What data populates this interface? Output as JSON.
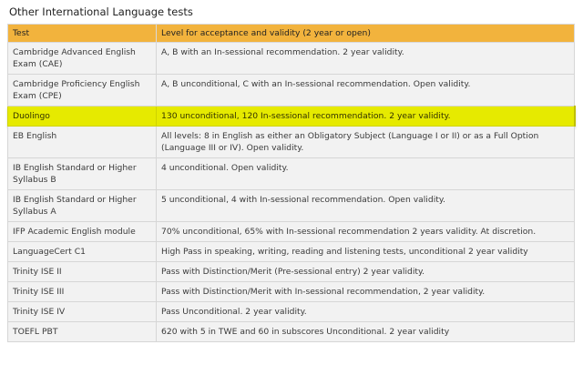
{
  "caption": "Other International Language tests",
  "columns": {
    "test": "Test",
    "level": "Level for acceptance and validity (2 year or open)"
  },
  "rows": [
    {
      "test": "Cambridge Advanced English Exam (CAE)",
      "level": "A, B with an In-sessional recommendation. 2 year validity."
    },
    {
      "test": "Cambridge Proficiency English Exam (CPE)",
      "level": "A, B unconditional, C with an In-sessional recommendation. Open validity."
    },
    {
      "test": "Duolingo",
      "level": "130 unconditional, 120 In-sessional recommendation. 2 year validity."
    },
    {
      "test": "EB English",
      "level": "All levels: 8 in English as either an Obligatory Subject (Language I or II) or as a Full Option (Language III or IV). Open validity."
    },
    {
      "test": "IB English Standard or Higher Syllabus B",
      "level": "4 unconditional.  Open validity."
    },
    {
      "test": "IB English Standard or Higher Syllabus A",
      "level": "5 unconditional, 4 with In-sessional recommendation. Open validity."
    },
    {
      "test": "IFP Academic English module",
      "level": "70% unconditional, 65% with In-sessional recommendation 2 years validity. At discretion."
    },
    {
      "test": "LanguageCert C1",
      "level": "High Pass in speaking, writing, reading and listening tests, unconditional 2 year validity"
    },
    {
      "test": "Trinity ISE II",
      "level": "Pass with Distinction/Merit  (Pre-sessional entry) 2 year validity."
    },
    {
      "test": "Trinity ISE III",
      "level": "Pass with Distinction/Merit with In-sessional recommendation, 2 year validity."
    },
    {
      "test": "Trinity ISE IV",
      "level": "Pass Unconditional. 2 year validity."
    },
    {
      "test": "TOEFL PBT",
      "level": "620 with 5 in TWE and 60 in subscores Unconditional. 2 year validity"
    }
  ],
  "highlighted_row": "Duolingo",
  "colors": {
    "header_bg": "#f2b33d",
    "row_bg": "#f2f2f2",
    "highlight_bg": "#e6ea00"
  }
}
